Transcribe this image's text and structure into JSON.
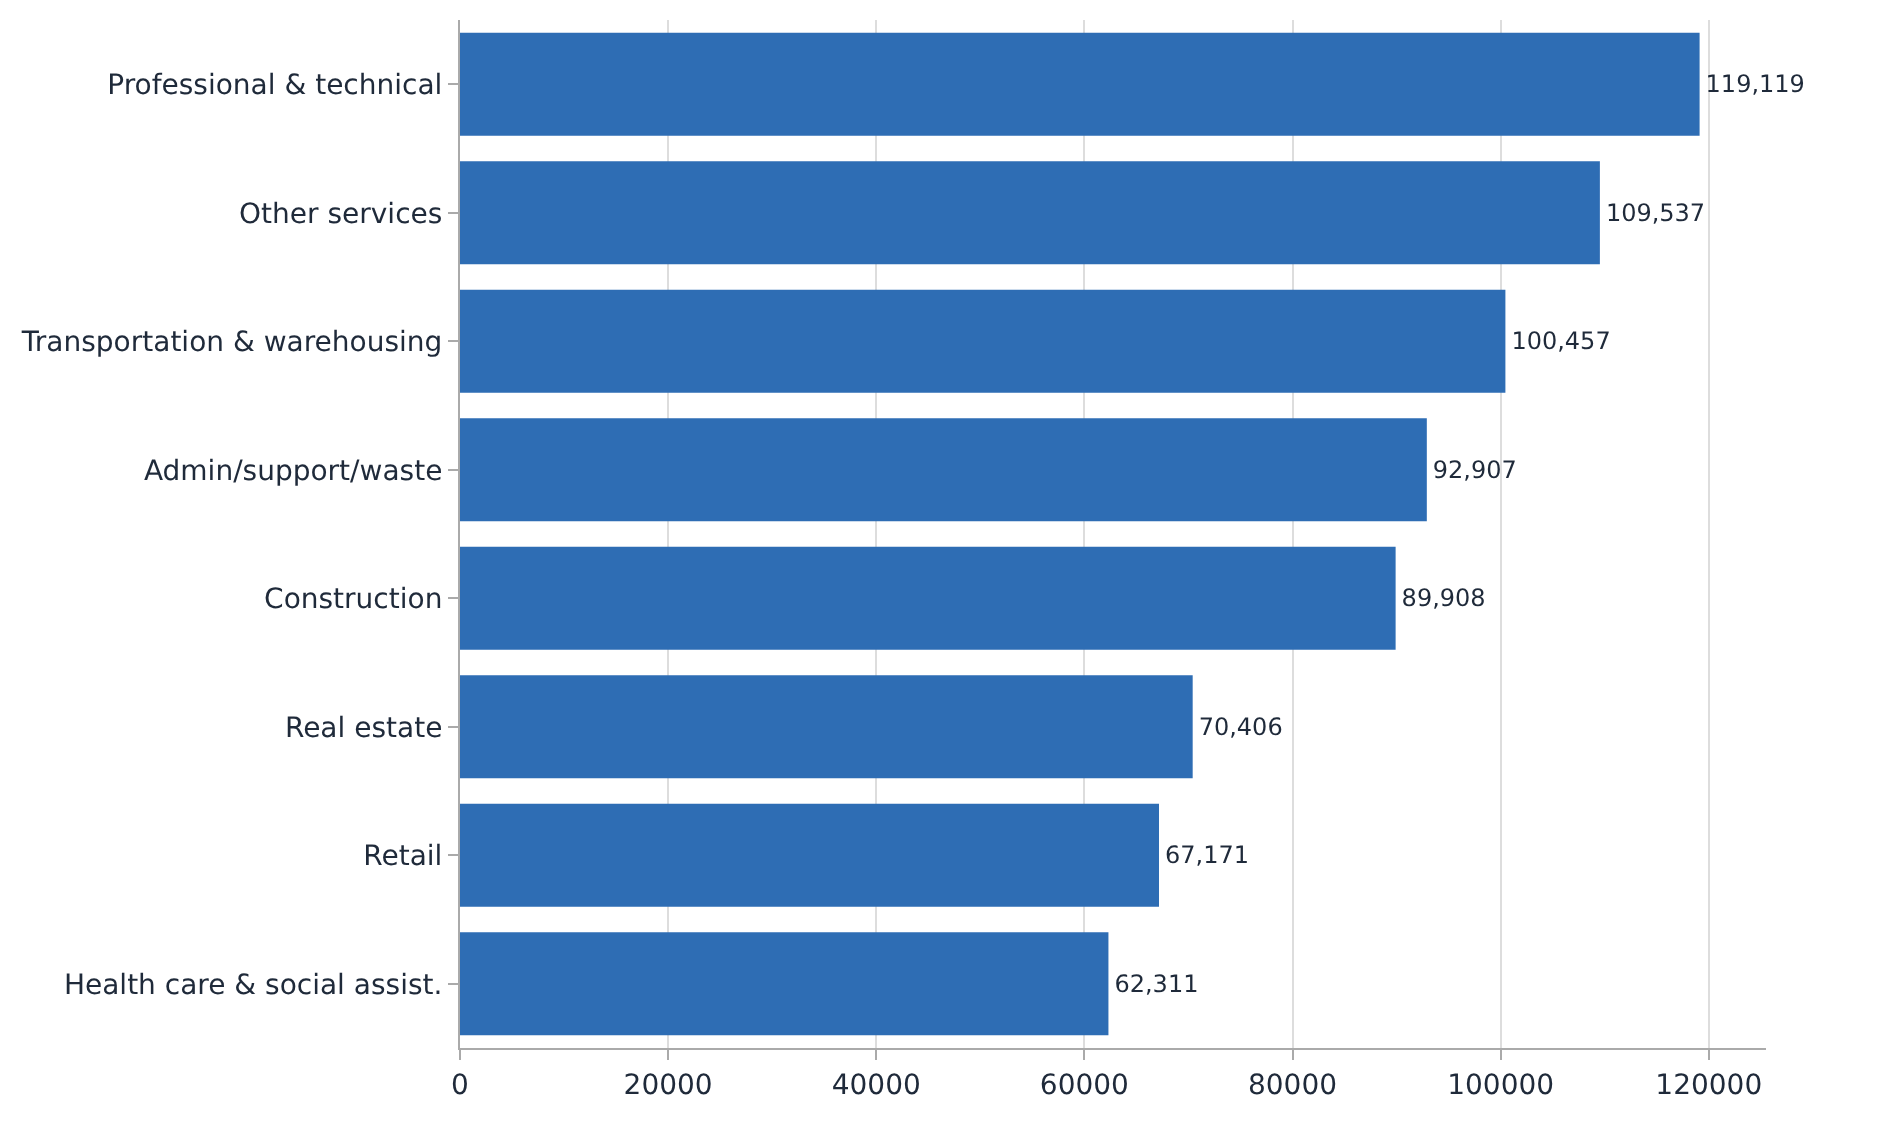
{
  "chart_data": {
    "type": "bar",
    "orientation": "horizontal",
    "categories": [
      "Professional & technical",
      "Other services",
      "Transportation & warehousing",
      "Admin/support/waste",
      "Construction",
      "Real estate",
      "Retail",
      "Health care & social assist."
    ],
    "values": [
      119119,
      109537,
      100457,
      92907,
      89908,
      70406,
      67171,
      62311
    ],
    "color": "#2e6db4",
    "xlim": [
      0,
      125500
    ],
    "xticks": [
      0,
      20000,
      40000,
      60000,
      80000,
      100000,
      120000
    ],
    "value_labels": [
      "119,119",
      "109,537",
      "100,457",
      "92,907",
      "89,908",
      "70,406",
      "67,171",
      "62,311"
    ],
    "grid": "x"
  }
}
